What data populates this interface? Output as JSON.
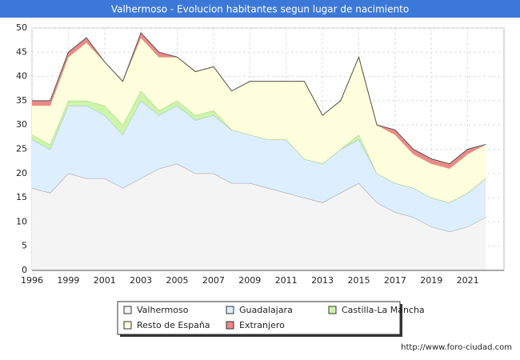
{
  "chart_data": {
    "type": "stacked-area",
    "title": "Valhermoso - Evolucion habitantes segun lugar de nacimiento",
    "footer": "http://www.foro-ciudad.com",
    "categories": [
      "1996",
      null,
      "1999",
      null,
      "2001",
      null,
      "2003",
      null,
      "2005",
      null,
      "2007",
      null,
      "2009",
      null,
      "2011",
      null,
      "2013",
      null,
      "2015",
      null,
      "2017",
      null,
      "2019",
      null,
      "2021",
      null
    ],
    "series": [
      {
        "name": "Valhermoso",
        "color": "#f4f4f4",
        "line": "#999999",
        "values": [
          17,
          16,
          20,
          19,
          19,
          17,
          19,
          21,
          22,
          20,
          20,
          18,
          18,
          17,
          16,
          15,
          14,
          16,
          18,
          14,
          12,
          11,
          9,
          8,
          9,
          11
        ]
      },
      {
        "name": "Guadalajara",
        "color": "#ddeeff",
        "line": "#99bbdd",
        "values": [
          10,
          9,
          14,
          15,
          13,
          11,
          16,
          11,
          12,
          11,
          12,
          11,
          10,
          10,
          11,
          8,
          8,
          9,
          9,
          6,
          6,
          6,
          6,
          6,
          7,
          8
        ]
      },
      {
        "name": "Castilla-La Mancha",
        "color": "#ccf5aa",
        "line": "#99cc77",
        "values": [
          1,
          1,
          1,
          1,
          2,
          2,
          2,
          1,
          1,
          1,
          1,
          0,
          0,
          0,
          0,
          0,
          0,
          0,
          1,
          0,
          0,
          0,
          0,
          0,
          0,
          0
        ]
      },
      {
        "name": "Resto de España",
        "color": "#ffffdd",
        "line": "#cccc99",
        "values": [
          6,
          8,
          9,
          12,
          9,
          9,
          11,
          11,
          9,
          9,
          9,
          8,
          11,
          12,
          12,
          16,
          10,
          10,
          16,
          10,
          10,
          7,
          7,
          7,
          8,
          7
        ]
      },
      {
        "name": "Extranjero",
        "color": "#ee8888",
        "line": "#cc5555",
        "values": [
          1,
          1,
          1,
          1,
          0,
          0,
          1,
          1,
          0,
          0,
          0,
          0,
          0,
          0,
          0,
          0,
          0,
          0,
          0,
          0,
          1,
          1,
          1,
          1,
          1,
          0
        ]
      }
    ],
    "ylim": [
      0,
      50
    ],
    "yticks": [
      0,
      5,
      10,
      15,
      20,
      25,
      30,
      35,
      40,
      45,
      50
    ],
    "grid": true
  }
}
